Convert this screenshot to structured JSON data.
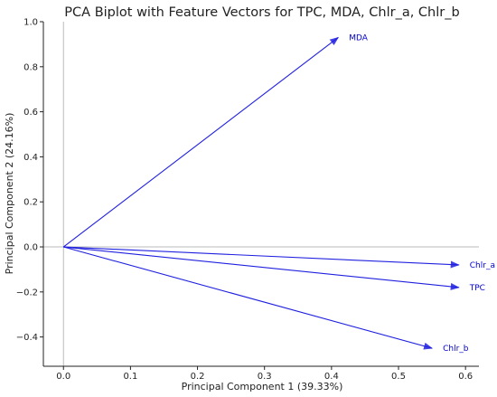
{
  "chart_data": {
    "type": "biplot",
    "title": "PCA Biplot with Feature Vectors for TPC, MDA, Chlr_a, Chlr_b",
    "xlabel": "Principal Component 1 (39.33%)",
    "ylabel": "Principal Component 2 (24.16%)",
    "xlim": [
      -0.03,
      0.62
    ],
    "ylim": [
      -0.53,
      1.0
    ],
    "xticks": [
      0.0,
      0.1,
      0.2,
      0.3,
      0.4,
      0.5,
      0.6
    ],
    "xtick_labels": [
      "0.0",
      "0.1",
      "0.2",
      "0.3",
      "0.4",
      "0.5",
      "0.6"
    ],
    "yticks": [
      -0.4,
      -0.2,
      0.0,
      0.2,
      0.4,
      0.6,
      0.8,
      1.0
    ],
    "ytick_labels": [
      "−0.4",
      "−0.2",
      "0.0",
      "0.2",
      "0.4",
      "0.6",
      "0.8",
      "1.0"
    ],
    "reference_lines": {
      "x": 0.0,
      "y": 0.0,
      "color": "#bbbbbb"
    },
    "grid": false,
    "vector_color": "#2020e0",
    "label_color": "#0000cc",
    "vectors": [
      {
        "name": "MDA",
        "x": 0.41,
        "y": 0.93
      },
      {
        "name": "Chlr_a",
        "x": 0.59,
        "y": -0.08
      },
      {
        "name": "TPC",
        "x": 0.59,
        "y": -0.18
      },
      {
        "name": "Chlr_b",
        "x": 0.55,
        "y": -0.45
      }
    ]
  }
}
